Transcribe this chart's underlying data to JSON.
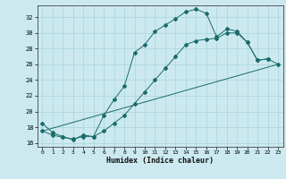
{
  "xlabel": "Humidex (Indice chaleur)",
  "bg_color": "#cce9f0",
  "grid_color": "#a8d4dc",
  "line_color": "#1a6b6b",
  "xlim": [
    -0.5,
    23.5
  ],
  "ylim": [
    15.5,
    33.5
  ],
  "xticks": [
    0,
    1,
    2,
    3,
    4,
    5,
    6,
    7,
    8,
    9,
    10,
    11,
    12,
    13,
    14,
    15,
    16,
    17,
    18,
    19,
    20,
    21,
    22,
    23
  ],
  "yticks": [
    16,
    18,
    20,
    22,
    24,
    26,
    28,
    30,
    32
  ],
  "line1_x": [
    0,
    1,
    2,
    3,
    4,
    5,
    6,
    7,
    8,
    9,
    10,
    11,
    12,
    13,
    14,
    15,
    16,
    17,
    18,
    19,
    20,
    21,
    22
  ],
  "line1_y": [
    18.5,
    17.3,
    16.8,
    16.4,
    17.0,
    16.8,
    19.5,
    21.5,
    23.2,
    27.5,
    28.5,
    30.2,
    31.0,
    31.8,
    32.7,
    33.0,
    32.5,
    29.5,
    30.5,
    30.2,
    28.8,
    26.5,
    26.7
  ],
  "line2_x": [
    0,
    23
  ],
  "line2_y": [
    17.5,
    26.0
  ],
  "line3_x": [
    0,
    1,
    2,
    3,
    4,
    5,
    6,
    7,
    8,
    9,
    10,
    11,
    12,
    13,
    14,
    15,
    16,
    17,
    18,
    19,
    20,
    21,
    22,
    23
  ],
  "line3_y": [
    17.5,
    17.0,
    16.7,
    16.5,
    16.8,
    16.8,
    17.5,
    18.5,
    19.5,
    21.0,
    22.5,
    24.0,
    25.5,
    27.0,
    28.5,
    29.0,
    29.2,
    29.3,
    30.0,
    30.0,
    28.8,
    26.5,
    26.7,
    26.0
  ]
}
